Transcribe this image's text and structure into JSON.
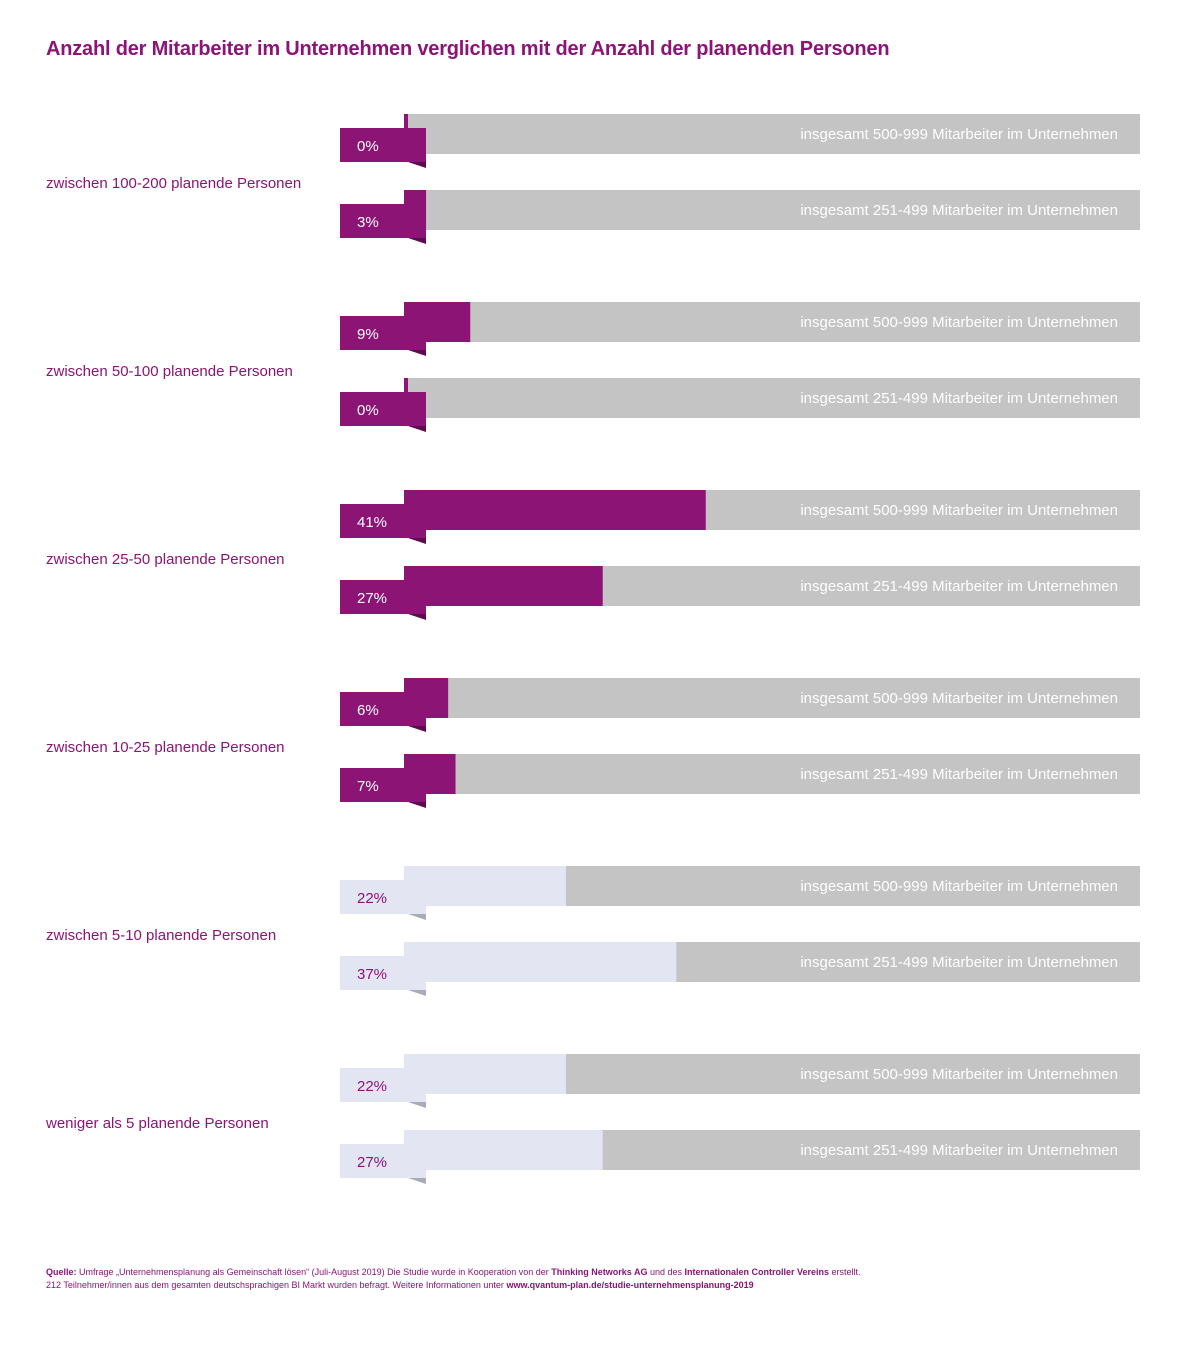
{
  "title": "Anzahl der Mitarbeiter im Unternehmen verglichen mit der Anzahl der planenden Personen",
  "colors": {
    "accent": "#8b1474",
    "bar_track": "#c4c4c4",
    "bar_light": "#e3e6f2",
    "white": "#ffffff"
  },
  "chart_data": {
    "type": "bar",
    "orientation": "horizontal",
    "xlim": [
      0,
      100
    ],
    "unit": "%",
    "groups": [
      {
        "label": "zwischen 100-200 planende Personen",
        "bars": [
          {
            "series": "insgesamt 500-999 Mitarbeiter im Unternehmen",
            "value": 0,
            "value_label": "0%",
            "style": "dark"
          },
          {
            "series": "insgesamt 251-499 Mitarbeiter im Unternehmen",
            "value": 3,
            "value_label": "3%",
            "style": "dark"
          }
        ]
      },
      {
        "label": "zwischen 50-100 planende Personen",
        "bars": [
          {
            "series": "insgesamt 500-999 Mitarbeiter im Unternehmen",
            "value": 9,
            "value_label": "9%",
            "style": "dark"
          },
          {
            "series": "insgesamt 251-499 Mitarbeiter im Unternehmen",
            "value": 0,
            "value_label": "0%",
            "style": "dark"
          }
        ]
      },
      {
        "label": "zwischen 25-50 planende Personen",
        "bars": [
          {
            "series": "insgesamt 500-999 Mitarbeiter im Unternehmen",
            "value": 41,
            "value_label": "41%",
            "style": "dark"
          },
          {
            "series": "insgesamt 251-499 Mitarbeiter im Unternehmen",
            "value": 27,
            "value_label": "27%",
            "style": "dark"
          }
        ]
      },
      {
        "label": "zwischen 10-25 planende Personen",
        "bars": [
          {
            "series": "insgesamt 500-999 Mitarbeiter im Unternehmen",
            "value": 6,
            "value_label": "6%",
            "style": "dark"
          },
          {
            "series": "insgesamt 251-499 Mitarbeiter im Unternehmen",
            "value": 7,
            "value_label": "7%",
            "style": "dark"
          }
        ]
      },
      {
        "label": "zwischen 5-10 planende Personen",
        "bars": [
          {
            "series": "insgesamt 500-999 Mitarbeiter im Unternehmen",
            "value": 22,
            "value_label": "22%",
            "style": "light"
          },
          {
            "series": "insgesamt 251-499 Mitarbeiter im Unternehmen",
            "value": 37,
            "value_label": "37%",
            "style": "light"
          }
        ]
      },
      {
        "label": "weniger als 5 planende Personen",
        "bars": [
          {
            "series": "insgesamt 500-999 Mitarbeiter im Unternehmen",
            "value": 22,
            "value_label": "22%",
            "style": "light"
          },
          {
            "series": "insgesamt 251-499 Mitarbeiter im Unternehmen",
            "value": 27,
            "value_label": "27%",
            "style": "light"
          }
        ]
      }
    ]
  },
  "footer": {
    "source_label": "Quelle:",
    "line1_a": " Umfrage „Unternehmensplanung als Gemeinschaft lösen“ (Juli-August 2019)  Die Studie wurde in Kooperation von der ",
    "org1": "Thinking Networks AG",
    "line1_b": " und des ",
    "org2": "Internationalen Controller Vereins",
    "line1_c": " erstellt.",
    "line2_a": "212 Teilnehmer/innen aus dem gesamten deutschsprachigen BI Markt wurden befragt. Weitere Informationen unter ",
    "url": "www.qvantum-plan.de/studie-unternehmensplanung-2019"
  }
}
